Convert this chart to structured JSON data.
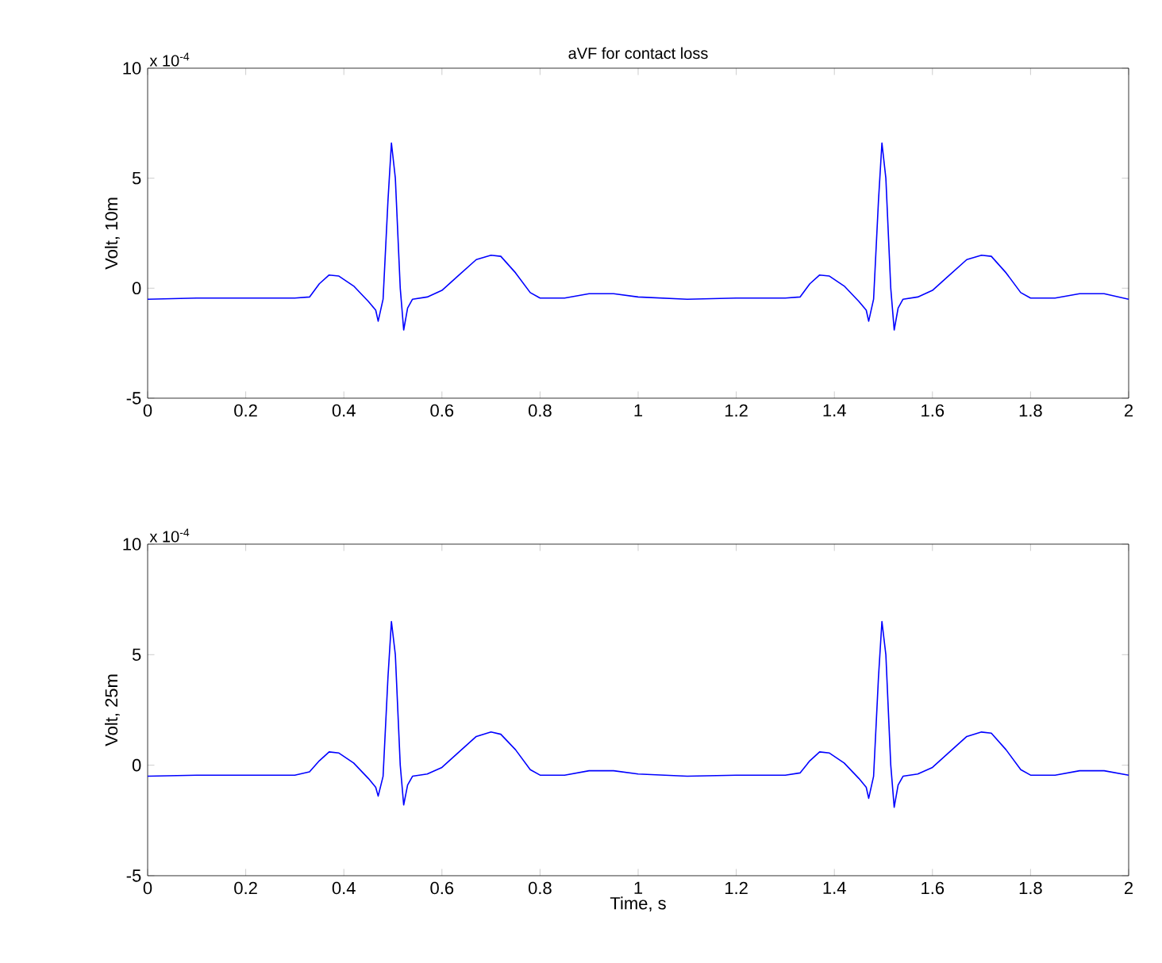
{
  "chart_data": [
    {
      "type": "line",
      "title": "aVF for contact loss",
      "ylabel": "Volt, 10m",
      "annotations": [
        "x 10$^{-4}$"
      ],
      "xlim": [
        0,
        2
      ],
      "xticks": [
        0,
        0.2,
        0.4,
        0.6,
        0.8,
        1,
        1.2,
        1.4,
        1.6,
        1.8,
        2
      ],
      "ylim": [
        -5,
        10
      ],
      "yticks": [
        -5,
        0,
        5,
        10
      ],
      "series": [
        {
          "color": "#0000ff",
          "x": [
            0,
            0.1,
            0.2,
            0.3,
            0.33,
            0.35,
            0.37,
            0.39,
            0.42,
            0.45,
            0.465,
            0.47,
            0.48,
            0.49,
            0.497,
            0.505,
            0.515,
            0.522,
            0.53,
            0.54,
            0.57,
            0.6,
            0.63,
            0.67,
            0.7,
            0.72,
            0.75,
            0.78,
            0.8,
            0.85,
            0.9,
            0.95,
            1.0,
            1.1,
            1.2,
            1.3,
            1.33,
            1.35,
            1.37,
            1.39,
            1.42,
            1.45,
            1.465,
            1.47,
            1.48,
            1.49,
            1.497,
            1.505,
            1.515,
            1.522,
            1.53,
            1.54,
            1.57,
            1.6,
            1.63,
            1.67,
            1.7,
            1.72,
            1.75,
            1.78,
            1.8,
            1.85,
            1.9,
            1.95,
            2.0
          ],
          "values": [
            -0.5,
            -0.45,
            -0.45,
            -0.45,
            -0.4,
            0.2,
            0.6,
            0.55,
            0.1,
            -0.6,
            -1.0,
            -1.5,
            -0.5,
            4.0,
            6.6,
            5.0,
            0.0,
            -1.9,
            -0.9,
            -0.5,
            -0.4,
            -0.1,
            0.5,
            1.3,
            1.5,
            1.45,
            0.7,
            -0.2,
            -0.45,
            -0.45,
            -0.25,
            -0.25,
            -0.4,
            -0.5,
            -0.45,
            -0.45,
            -0.4,
            0.2,
            0.6,
            0.55,
            0.1,
            -0.6,
            -1.0,
            -1.5,
            -0.5,
            4.0,
            6.6,
            5.0,
            0.0,
            -1.9,
            -0.9,
            -0.5,
            -0.4,
            -0.1,
            0.5,
            1.3,
            1.5,
            1.45,
            0.7,
            -0.2,
            -0.45,
            -0.45,
            -0.25,
            -0.25,
            -0.5
          ]
        }
      ]
    },
    {
      "type": "line",
      "xlabel": "Time, s",
      "ylabel": "Volt, 25m",
      "annotations": [
        "x 10$^{-4}$"
      ],
      "xlim": [
        0,
        2
      ],
      "xticks": [
        0,
        0.2,
        0.4,
        0.6,
        0.8,
        1,
        1.2,
        1.4,
        1.6,
        1.8,
        2
      ],
      "ylim": [
        -5,
        10
      ],
      "yticks": [
        -5,
        0,
        5,
        10
      ],
      "series": [
        {
          "color": "#0000ff",
          "x": [
            0,
            0.1,
            0.2,
            0.3,
            0.33,
            0.35,
            0.37,
            0.39,
            0.42,
            0.45,
            0.465,
            0.47,
            0.48,
            0.49,
            0.497,
            0.505,
            0.515,
            0.522,
            0.53,
            0.54,
            0.57,
            0.6,
            0.63,
            0.67,
            0.7,
            0.72,
            0.75,
            0.78,
            0.8,
            0.85,
            0.9,
            0.95,
            1.0,
            1.1,
            1.2,
            1.3,
            1.33,
            1.35,
            1.37,
            1.39,
            1.42,
            1.45,
            1.465,
            1.47,
            1.48,
            1.49,
            1.497,
            1.505,
            1.515,
            1.522,
            1.53,
            1.54,
            1.57,
            1.6,
            1.63,
            1.67,
            1.7,
            1.72,
            1.75,
            1.78,
            1.8,
            1.85,
            1.9,
            1.95,
            2.0
          ],
          "values": [
            -0.5,
            -0.45,
            -0.45,
            -0.45,
            -0.3,
            0.2,
            0.6,
            0.55,
            0.1,
            -0.6,
            -1.0,
            -1.4,
            -0.5,
            4.0,
            6.5,
            5.0,
            0.0,
            -1.8,
            -0.9,
            -0.5,
            -0.4,
            -0.1,
            0.5,
            1.3,
            1.5,
            1.4,
            0.7,
            -0.2,
            -0.45,
            -0.45,
            -0.25,
            -0.25,
            -0.4,
            -0.5,
            -0.45,
            -0.45,
            -0.35,
            0.2,
            0.6,
            0.55,
            0.1,
            -0.6,
            -1.0,
            -1.5,
            -0.5,
            4.0,
            6.5,
            5.0,
            0.0,
            -1.9,
            -0.9,
            -0.5,
            -0.4,
            -0.1,
            0.5,
            1.3,
            1.5,
            1.45,
            0.7,
            -0.2,
            -0.45,
            -0.45,
            -0.25,
            -0.25,
            -0.45
          ]
        }
      ]
    }
  ]
}
